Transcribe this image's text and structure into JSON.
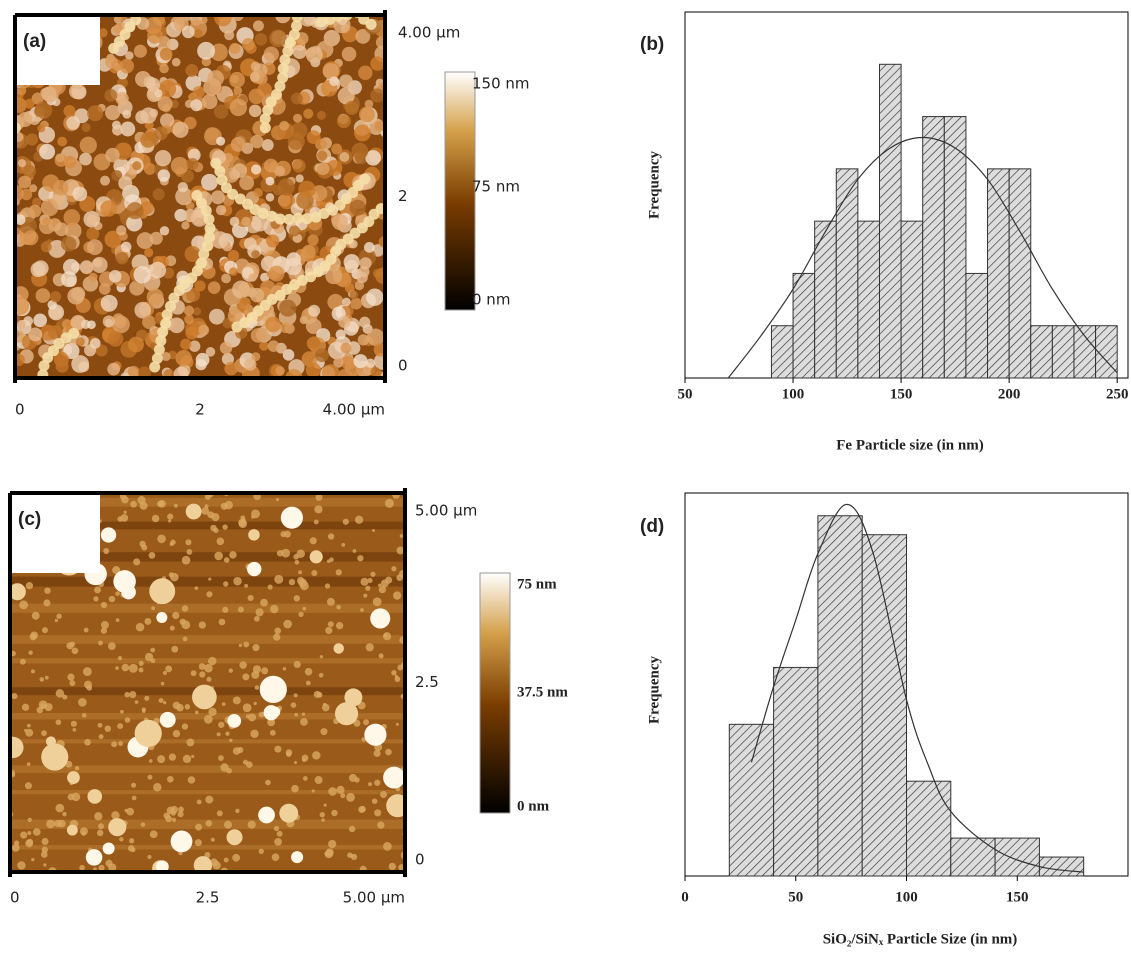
{
  "chart_data": [
    {
      "type": "image",
      "panel": "(a)",
      "xlim": [
        0,
        4
      ],
      "xticks": [
        0,
        2,
        {
          "value": 4,
          "label": "4.00 µm"
        }
      ],
      "ylim": [
        0,
        4
      ],
      "yticks": [
        0,
        2,
        {
          "value": 4,
          "label": "4.00 µm"
        }
      ],
      "colorbar": {
        "lim": [
          0,
          150
        ],
        "ticks": [
          {
            "value": 0,
            "label": "0 nm"
          },
          {
            "value": 75,
            "label": "75 nm"
          },
          {
            "value": 150,
            "label": "150 nm"
          }
        ]
      }
    },
    {
      "type": "histogram",
      "panel": "(b)",
      "xlabel": "Fe Particle size (in nm)",
      "ylabel": "Frequency",
      "bins": [
        90,
        100,
        110,
        120,
        130,
        140,
        150,
        160,
        170,
        180,
        190,
        200,
        210,
        220,
        230,
        240,
        250
      ],
      "values": [
        1,
        2,
        3,
        4,
        3,
        6,
        3,
        5,
        5,
        2,
        4,
        4,
        1,
        1,
        1,
        1
      ],
      "xlim": [
        50,
        255
      ],
      "xticks": [
        50,
        100,
        150,
        200,
        250
      ],
      "ylim": [
        0,
        7
      ],
      "fit": {
        "x": [
          70,
          85,
          100,
          115,
          130,
          145,
          160,
          175,
          190,
          205,
          220,
          235,
          250
        ],
        "y": [
          0,
          0.8,
          1.7,
          2.8,
          3.8,
          4.4,
          4.6,
          4.4,
          3.8,
          2.8,
          1.7,
          0.8,
          0.1
        ]
      }
    },
    {
      "type": "image",
      "panel": "(c)",
      "xlim": [
        0,
        5
      ],
      "xticks": [
        0,
        2.5,
        {
          "value": 5,
          "label": "5.00 µm"
        }
      ],
      "ylim": [
        0,
        5
      ],
      "yticks": [
        0,
        2.5,
        {
          "value": 5,
          "label": "5.00 µm"
        }
      ],
      "colorbar": {
        "lim": [
          0,
          75
        ],
        "ticks": [
          {
            "value": 0,
            "label": "0 nm"
          },
          {
            "value": 37.5,
            "label": "37.5 nm"
          },
          {
            "value": 75,
            "label": "75 nm"
          }
        ]
      }
    },
    {
      "type": "histogram",
      "panel": "(d)",
      "xlabel": "SiO₂/SiNₓ Particle Size (in nm)",
      "ylabel": "Frequency",
      "bins": [
        20,
        40,
        60,
        80,
        100,
        120,
        140,
        160,
        180
      ],
      "values": [
        8,
        11,
        19,
        18,
        5,
        2,
        2,
        1
      ],
      "xlim": [
        0,
        200
      ],
      "xticks": [
        0,
        50,
        100,
        150
      ],
      "ylim": [
        0,
        20.2
      ],
      "fit": {
        "x": [
          30,
          40,
          50,
          60,
          73,
          85,
          100,
          110,
          120,
          140,
          160,
          180
        ],
        "y": [
          6,
          10,
          13.5,
          17,
          19.6,
          17,
          9.3,
          5.8,
          3.4,
          1.4,
          0.5,
          0.2
        ]
      }
    }
  ]
}
